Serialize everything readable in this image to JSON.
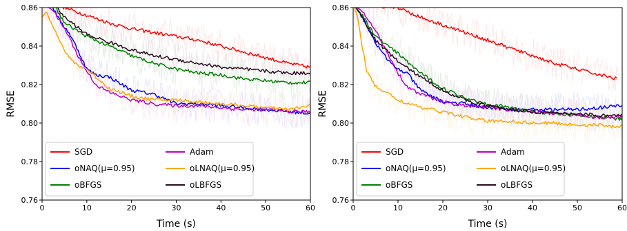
{
  "figure": {
    "panel_count": 2
  },
  "chart_data": [
    {
      "type": "line",
      "title": "",
      "xlabel": "Time (s)",
      "ylabel": "RMSE",
      "xlim": [
        0,
        60
      ],
      "ylim": [
        0.76,
        0.86
      ],
      "xticks": [
        "0",
        "10",
        "20",
        "30",
        "40",
        "50",
        "60"
      ],
      "yticks": [
        "0.76",
        "0.78",
        "0.80",
        "0.82",
        "0.84",
        "0.86"
      ],
      "grid": false,
      "legend": {
        "placement": "lower-left",
        "columns": 2
      },
      "series": [
        {
          "name": "SGD",
          "color": "#ff0000",
          "x": [
            0,
            2,
            5,
            10,
            15,
            20,
            25,
            30,
            35,
            40,
            45,
            50,
            55,
            60
          ],
          "y": [
            0.862,
            0.862,
            0.86,
            0.856,
            0.852,
            0.849,
            0.847,
            0.845,
            0.843,
            0.84,
            0.837,
            0.834,
            0.831,
            0.829
          ]
        },
        {
          "name": "oNAQ(μ=0.95)",
          "color": "#0000ff",
          "x": [
            0,
            2,
            4,
            6,
            8,
            10,
            12,
            15,
            20,
            25,
            30,
            35,
            40,
            45,
            50,
            55,
            60
          ],
          "y": [
            0.862,
            0.862,
            0.853,
            0.847,
            0.838,
            0.828,
            0.825,
            0.824,
            0.817,
            0.815,
            0.81,
            0.81,
            0.809,
            0.808,
            0.807,
            0.806,
            0.805
          ]
        },
        {
          "name": "oBFGS",
          "color": "#008000",
          "x": [
            0,
            3,
            5,
            10,
            15,
            20,
            25,
            30,
            35,
            40,
            45,
            50,
            55,
            60
          ],
          "y": [
            0.862,
            0.86,
            0.852,
            0.845,
            0.84,
            0.835,
            0.831,
            0.828,
            0.826,
            0.825,
            0.823,
            0.822,
            0.821,
            0.821
          ]
        },
        {
          "name": "Adam",
          "color": "#bf00bf",
          "x": [
            0,
            2,
            4,
            6,
            8,
            10,
            12,
            15,
            20,
            25,
            30,
            35,
            40,
            45,
            50,
            55,
            60
          ],
          "y": [
            0.862,
            0.86,
            0.853,
            0.845,
            0.835,
            0.827,
            0.82,
            0.816,
            0.812,
            0.81,
            0.809,
            0.809,
            0.808,
            0.807,
            0.807,
            0.806,
            0.806
          ]
        },
        {
          "name": "oLNAQ(μ=0.95)",
          "color": "#ffa500",
          "x": [
            0,
            1,
            2,
            4,
            6,
            8,
            10,
            12,
            15,
            20,
            25,
            30,
            35,
            40,
            45,
            50,
            55,
            60
          ],
          "y": [
            0.855,
            0.858,
            0.853,
            0.842,
            0.834,
            0.83,
            0.828,
            0.824,
            0.818,
            0.814,
            0.812,
            0.812,
            0.811,
            0.81,
            0.809,
            0.808,
            0.807,
            0.809
          ]
        },
        {
          "name": "oLBFGS",
          "color": "#2a0a1e",
          "x": [
            0,
            3,
            5,
            10,
            15,
            20,
            25,
            30,
            35,
            40,
            45,
            50,
            55,
            60
          ],
          "y": [
            0.862,
            0.861,
            0.855,
            0.846,
            0.842,
            0.838,
            0.835,
            0.833,
            0.831,
            0.829,
            0.828,
            0.827,
            0.826,
            0.826
          ]
        }
      ]
    },
    {
      "type": "line",
      "title": "",
      "xlabel": "Time (s)",
      "ylabel": "RMSE",
      "xlim": [
        0,
        60
      ],
      "ylim": [
        0.76,
        0.86
      ],
      "xticks": [
        "0",
        "10",
        "20",
        "30",
        "40",
        "50",
        "60"
      ],
      "yticks": [
        "0.76",
        "0.78",
        "0.80",
        "0.82",
        "0.84",
        "0.86"
      ],
      "grid": false,
      "legend": {
        "placement": "lower-left",
        "columns": 2
      },
      "series": [
        {
          "name": "SGD",
          "color": "#ff0000",
          "x": [
            0,
            10,
            15,
            20,
            25,
            30,
            35,
            40,
            45,
            50,
            55,
            59
          ],
          "y": [
            0.862,
            0.86,
            0.855,
            0.851,
            0.847,
            0.843,
            0.839,
            0.835,
            0.831,
            0.828,
            0.825,
            0.823
          ]
        },
        {
          "name": "oNAQ(μ=0.95)",
          "color": "#0000ff",
          "x": [
            0,
            2,
            4,
            6,
            8,
            10,
            12,
            15,
            20,
            25,
            30,
            35,
            40,
            45,
            50,
            55,
            60
          ],
          "y": [
            0.862,
            0.856,
            0.846,
            0.838,
            0.832,
            0.828,
            0.826,
            0.817,
            0.811,
            0.81,
            0.808,
            0.807,
            0.807,
            0.807,
            0.807,
            0.808,
            0.809
          ]
        },
        {
          "name": "oBFGS",
          "color": "#008000",
          "x": [
            0,
            2,
            5,
            10,
            15,
            20,
            25,
            30,
            35,
            40,
            45,
            50,
            55,
            60
          ],
          "y": [
            0.862,
            0.856,
            0.845,
            0.836,
            0.826,
            0.818,
            0.813,
            0.81,
            0.808,
            0.806,
            0.805,
            0.804,
            0.803,
            0.802
          ]
        },
        {
          "name": "Adam",
          "color": "#bf00bf",
          "x": [
            0,
            2,
            5,
            8,
            10,
            12,
            15,
            20,
            25,
            30,
            35,
            40,
            45,
            50,
            55,
            60
          ],
          "y": [
            0.862,
            0.858,
            0.848,
            0.835,
            0.826,
            0.819,
            0.815,
            0.811,
            0.809,
            0.808,
            0.807,
            0.806,
            0.805,
            0.804,
            0.803,
            0.803
          ]
        },
        {
          "name": "oLNAQ(μ=0.95)",
          "color": "#ffa500",
          "x": [
            0,
            1,
            2,
            3,
            5,
            8,
            10,
            15,
            20,
            25,
            30,
            35,
            40,
            45,
            50,
            55,
            60
          ],
          "y": [
            0.862,
            0.855,
            0.84,
            0.827,
            0.819,
            0.815,
            0.812,
            0.808,
            0.806,
            0.803,
            0.801,
            0.801,
            0.8,
            0.8,
            0.799,
            0.799,
            0.798
          ]
        },
        {
          "name": "oLBFGS",
          "color": "#2a0a1e",
          "x": [
            0,
            2,
            5,
            10,
            15,
            20,
            25,
            30,
            35,
            40,
            45,
            50,
            55,
            60
          ],
          "y": [
            0.862,
            0.855,
            0.843,
            0.832,
            0.824,
            0.817,
            0.812,
            0.809,
            0.807,
            0.806,
            0.805,
            0.805,
            0.804,
            0.804
          ]
        }
      ]
    }
  ]
}
